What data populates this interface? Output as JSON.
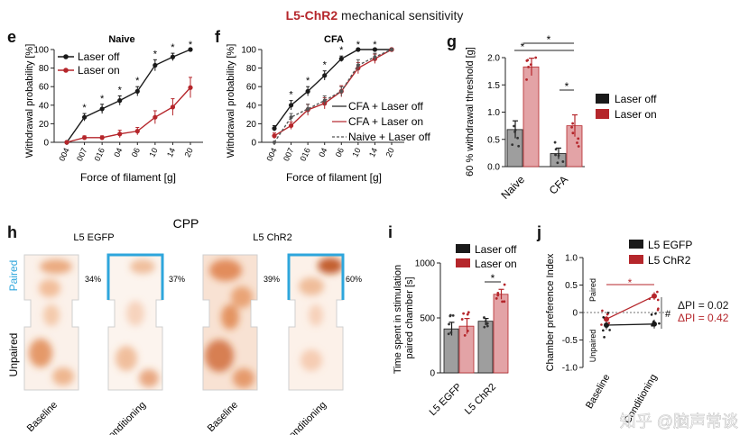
{
  "title": {
    "highlight": "L5-ChR2",
    "rest": " mechanical sensitivity"
  },
  "colors": {
    "black": "#1a1a1a",
    "red": "#b5262b",
    "grey": "#555555",
    "pink": "#e3a3a6",
    "cyan": "#2ea6dc",
    "lightgrey": "#9e9e9e"
  },
  "filament_ticks": [
    "004",
    "007",
    "016",
    "04",
    "06",
    "10",
    "14",
    "20"
  ],
  "watermark": "知乎 @脑声常谈",
  "chart_data": [
    {
      "panel": "e",
      "type": "line",
      "title": "Naive",
      "xlabel": "Force of filament [g]",
      "ylabel": "Withdrawal probability [%]",
      "ylim": [
        0,
        100
      ],
      "yticks": [
        0,
        20,
        40,
        60,
        80,
        100
      ],
      "series": [
        {
          "name": "Laser off",
          "color": "#1a1a1a",
          "values": [
            0,
            27,
            36,
            45,
            55,
            83,
            92,
            100
          ],
          "errors": [
            0,
            4,
            5,
            5,
            5,
            6,
            4,
            0
          ]
        },
        {
          "name": "Laser on",
          "color": "#b5262b",
          "values": [
            0,
            5,
            5,
            9,
            12,
            27,
            38,
            59
          ],
          "errors": [
            0,
            2,
            2,
            4,
            4,
            7,
            9,
            11
          ]
        }
      ],
      "stars": [
        "*",
        "*",
        "*",
        "*",
        "*",
        "*",
        "*"
      ]
    },
    {
      "panel": "f",
      "type": "line",
      "title": "CFA",
      "xlabel": "Force of filament [g]",
      "ylabel": "Withdrawal probability [%]",
      "ylim": [
        0,
        100
      ],
      "yticks": [
        0,
        20,
        40,
        60,
        80,
        100
      ],
      "series": [
        {
          "name": "CFA + Laser off",
          "color": "#1a1a1a",
          "values": [
            15,
            40,
            55,
            72,
            90,
            100,
            100,
            100
          ],
          "errors": [
            3,
            5,
            5,
            5,
            3,
            0,
            0,
            0
          ]
        },
        {
          "name": "CFA + Laser on",
          "color": "#b5262b",
          "values": [
            7,
            18,
            35,
            42,
            55,
            80,
            90,
            100
          ],
          "errors": [
            3,
            4,
            6,
            6,
            6,
            6,
            5,
            0
          ]
        },
        {
          "name": "Naive + Laser off",
          "color": "#555555",
          "dashed": true,
          "values": [
            0,
            27,
            36,
            45,
            55,
            83,
            92,
            100
          ],
          "errors": [
            0,
            4,
            5,
            5,
            5,
            6,
            4,
            0
          ]
        }
      ],
      "stars": [
        "*",
        "*",
        "*",
        "*",
        "*",
        "*"
      ]
    },
    {
      "panel": "g",
      "type": "bar",
      "ylabel": "60 % withdrawal threshold [g]",
      "ylim": [
        0,
        2.0
      ],
      "yticks": [
        "0.0",
        "0.5",
        "1.0",
        "1.5",
        "2.0"
      ],
      "categories": [
        "Naive",
        "CFA"
      ],
      "series": [
        {
          "name": "Laser off",
          "color": "#1a1a1a",
          "values": [
            0.68,
            0.24
          ],
          "errors": [
            0.16,
            0.1
          ]
        },
        {
          "name": "Laser on",
          "color": "#b5262b",
          "values": [
            1.83,
            0.75
          ],
          "errors": [
            0.16,
            0.2
          ]
        }
      ],
      "stars": [
        "*",
        "*",
        "*"
      ]
    },
    {
      "panel": "h",
      "type": "heatmap",
      "title": "CPP",
      "groups": [
        {
          "name": "L5 EGFP",
          "baseline_pct": "34%",
          "conditioning_pct": "37%"
        },
        {
          "name": "L5 ChR2",
          "baseline_pct": "39%",
          "conditioning_pct": "60%"
        }
      ],
      "xlabels": [
        "Baseline",
        "Conditioning",
        "Baseline",
        "Conditioning"
      ],
      "ylabels": {
        "paired": "Paired",
        "unpaired": "Unpaired"
      }
    },
    {
      "panel": "i",
      "type": "bar",
      "ylabel": "Time spent in stimulation paired chamber [s]",
      "ylim": [
        0,
        1000
      ],
      "yticks": [
        "0",
        "500",
        "1000"
      ],
      "categories": [
        "L5 EGFP",
        "L5 ChR2"
      ],
      "series": [
        {
          "name": "Laser off",
          "color": "#1a1a1a",
          "values": [
            400,
            470
          ],
          "errors": [
            60,
            25
          ]
        },
        {
          "name": "Laser on",
          "color": "#b5262b",
          "values": [
            425,
            715
          ],
          "errors": [
            70,
            45
          ]
        }
      ],
      "stars": [
        "*"
      ]
    },
    {
      "panel": "j",
      "type": "line",
      "ylabel": "Chamber preference Index",
      "ylim": [
        -1.0,
        1.0
      ],
      "yticks": [
        "1.0",
        "0.5",
        "0",
        "-0.5",
        "-1.0"
      ],
      "x": [
        "Baseline",
        "Conditioning"
      ],
      "ylabels": {
        "paired": "Paired",
        "unpaired": "Unpaired"
      },
      "series": [
        {
          "name": "L5 EGFP",
          "color": "#1a1a1a",
          "values": [
            -0.23,
            -0.21
          ],
          "errors": [
            0.08,
            0.08
          ]
        },
        {
          "name": "L5 ChR2",
          "color": "#b5262b",
          "values": [
            -0.12,
            0.3
          ],
          "errors": [
            0.05,
            0.07
          ]
        }
      ],
      "annotations": [
        {
          "text": "ΔPI = 0.02",
          "color": "#1a1a1a"
        },
        {
          "text": "ΔPI = 0.42",
          "color": "#b5262b"
        },
        {
          "text": "#",
          "color": "#1a1a1a"
        }
      ],
      "stars": [
        "*"
      ]
    }
  ]
}
